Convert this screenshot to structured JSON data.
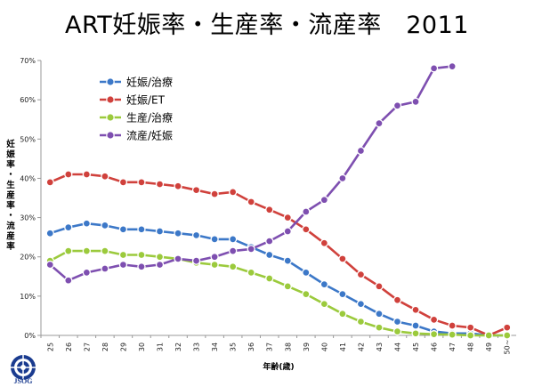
{
  "title": "ART妊娠率・生産率・流産率　2011",
  "logo_text": "JSOG",
  "colors": {
    "series1": "#3c78c8",
    "series2": "#d0413c",
    "series3": "#9bca3c",
    "series4": "#7e4fb0"
  },
  "chart_data": {
    "type": "line",
    "title": "ART妊娠率・生産率・流産率　2011",
    "xlabel": "年齢(歳)",
    "ylabel": "妊娠率・生産率・流産率",
    "categories": [
      "25",
      "26",
      "27",
      "28",
      "29",
      "30",
      "31",
      "32",
      "33",
      "34",
      "35",
      "36",
      "37",
      "38",
      "39",
      "40",
      "41",
      "42",
      "43",
      "44",
      "45",
      "46",
      "47",
      "48",
      "49",
      "50~"
    ],
    "ylim": [
      0,
      70
    ],
    "yticks": [
      "0%",
      "10%",
      "20%",
      "30%",
      "40%",
      "50%",
      "60%",
      "70%"
    ],
    "grid": false,
    "legend": "top-left",
    "series": [
      {
        "name": "妊娠/治療",
        "color": "#3c78c8",
        "values": [
          26,
          27.5,
          28.5,
          28,
          27,
          27,
          26.5,
          26,
          25.5,
          24.5,
          24.5,
          22.5,
          20.5,
          19,
          16,
          13,
          10.5,
          8,
          5.5,
          3.5,
          2.5,
          1,
          0.5,
          0.5,
          0,
          0
        ]
      },
      {
        "name": "妊娠/ET",
        "color": "#d0413c",
        "values": [
          39,
          41,
          41,
          40.5,
          39,
          39,
          38.5,
          38,
          37,
          36,
          36.5,
          34,
          32,
          30,
          27,
          23.5,
          19.5,
          15.5,
          12.5,
          9,
          6.5,
          4,
          2.5,
          2,
          0,
          2
        ]
      },
      {
        "name": "生産/治療",
        "color": "#9bca3c",
        "values": [
          19,
          21.5,
          21.5,
          21.5,
          20.5,
          20.5,
          20,
          19.5,
          18.5,
          18,
          17.5,
          16,
          14.5,
          12.5,
          10.5,
          8,
          5.5,
          3.5,
          2,
          1,
          0.5,
          0.3,
          0.2,
          0,
          0,
          0
        ]
      },
      {
        "name": "流産/妊娠",
        "color": "#7e4fb0",
        "values": [
          18,
          14,
          16,
          17,
          18,
          17.5,
          18,
          19.5,
          19,
          20,
          21.5,
          22,
          24,
          26.5,
          31.5,
          34.5,
          40,
          47,
          54,
          58.5,
          59.5,
          68,
          68.5,
          null,
          null,
          null
        ]
      }
    ]
  }
}
